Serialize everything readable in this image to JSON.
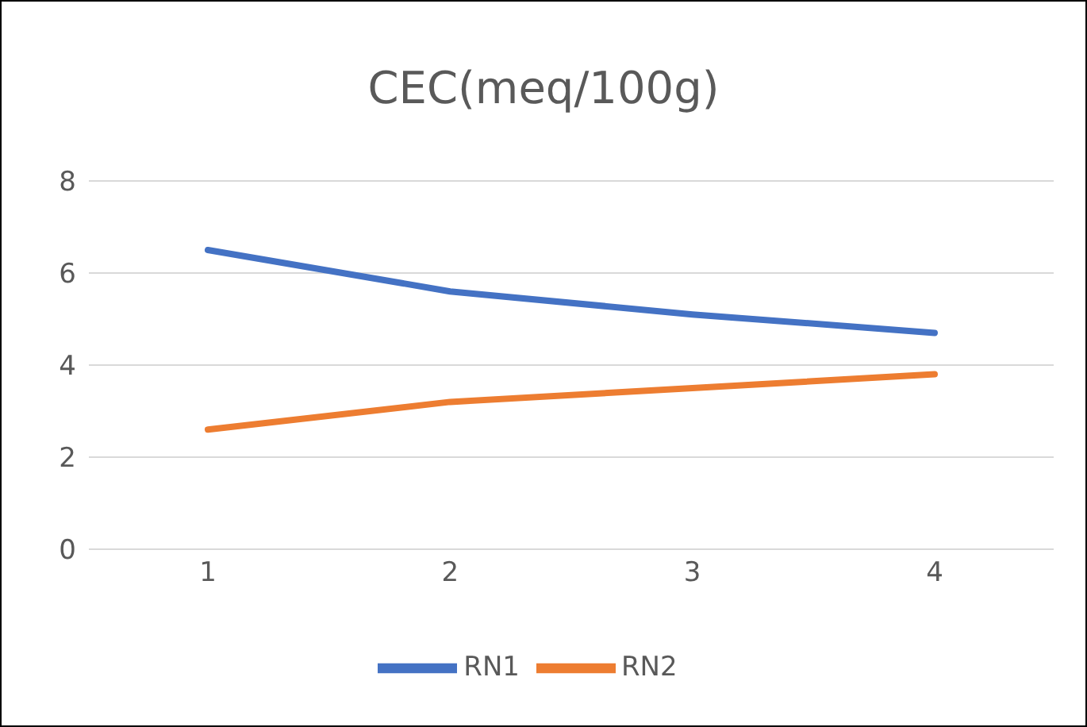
{
  "chart_data": {
    "type": "line",
    "title": "CEC(meq/100g)",
    "categories": [
      "1",
      "2",
      "3",
      "4"
    ],
    "series": [
      {
        "name": "RN1",
        "color": "#4472c4",
        "values": [
          6.5,
          5.6,
          5.1,
          4.7
        ]
      },
      {
        "name": "RN2",
        "color": "#ed7d31",
        "values": [
          2.6,
          3.2,
          3.5,
          3.8
        ]
      }
    ],
    "ylim": [
      0,
      8
    ],
    "yticks": [
      0,
      2,
      4,
      6,
      8
    ],
    "grid": "y",
    "legend": "bottom",
    "marker": "none",
    "line_style": "solid"
  }
}
